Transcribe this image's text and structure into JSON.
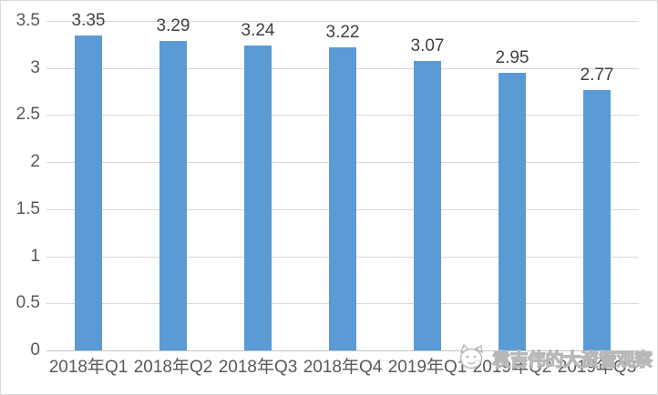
{
  "chart_data": {
    "type": "bar",
    "categories": [
      "2018年Q1",
      "2018年Q2",
      "2018年Q3",
      "2018年Q4",
      "2019年Q1",
      "2019年Q2",
      "2019年Q3"
    ],
    "values": [
      3.35,
      3.29,
      3.24,
      3.22,
      3.07,
      2.95,
      2.77
    ],
    "data_labels": [
      "3.35",
      "3.29",
      "3.24",
      "3.22",
      "3.07",
      "2.95",
      "2.77"
    ],
    "title": "",
    "xlabel": "",
    "ylabel": "",
    "ylim": [
      0,
      3.5
    ],
    "yticks": [
      0,
      0.5,
      1,
      1.5,
      2,
      2.5,
      3,
      3.5
    ],
    "ytick_labels": [
      "0",
      "0.5",
      "1",
      "1.5",
      "2",
      "2.5",
      "3",
      "3.5"
    ],
    "grid": true,
    "legend": "none",
    "colors": {
      "bar": "#5B9BD5",
      "gridline": "#D9D9D9",
      "axis_line": "#C6C6C6",
      "data_label": "#404040",
      "axis_label": "#595959",
      "background": "#FFFFFF",
      "border": "#D9D9D9",
      "watermark": "#B8B8B8"
    }
  },
  "watermark": {
    "icon": "cartoon-animal-face-icon",
    "text": "袁吉伟的大资管观察"
  }
}
